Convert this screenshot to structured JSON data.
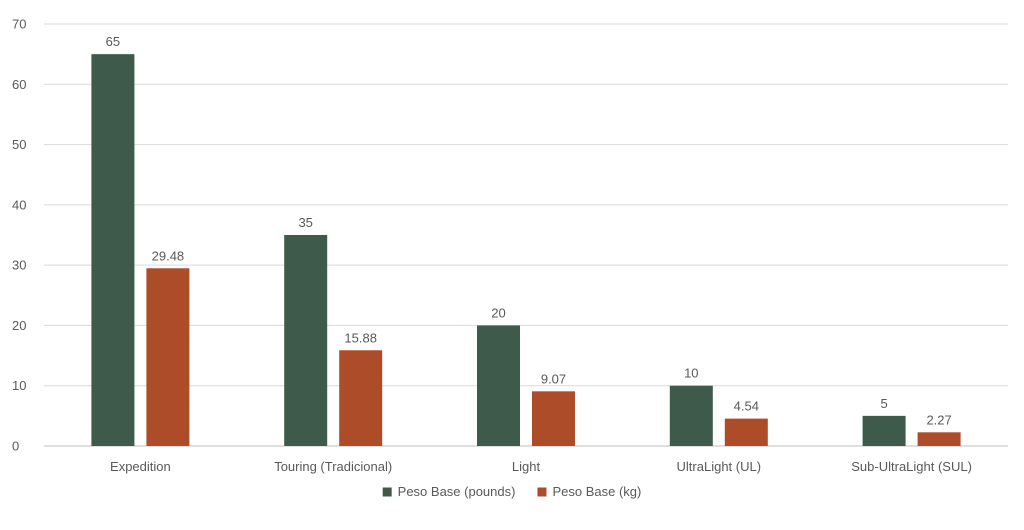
{
  "chart_data": {
    "type": "bar",
    "title": "",
    "xlabel": "",
    "ylabel": "",
    "ylim": [
      0,
      70
    ],
    "yticks": [
      0,
      10,
      20,
      30,
      40,
      50,
      60,
      70
    ],
    "grid": true,
    "legend_position": "bottom",
    "categories": [
      "Expedition",
      "Touring (Tradicional)",
      "Light",
      "UltraLight (UL)",
      "Sub-UltraLight (SUL)"
    ],
    "series": [
      {
        "name": "Peso Base (pounds)",
        "color": "#3d5a4b",
        "values": [
          65,
          35,
          20,
          10,
          5
        ],
        "labels": [
          "65",
          "35",
          "20",
          "10",
          "5"
        ]
      },
      {
        "name": "Peso Base (kg)",
        "color": "#ad4c28",
        "values": [
          29.48,
          15.88,
          9.07,
          4.54,
          2.27
        ],
        "labels": [
          "29.48",
          "15.88",
          "9.07",
          "4.54",
          "2.27"
        ]
      }
    ]
  }
}
